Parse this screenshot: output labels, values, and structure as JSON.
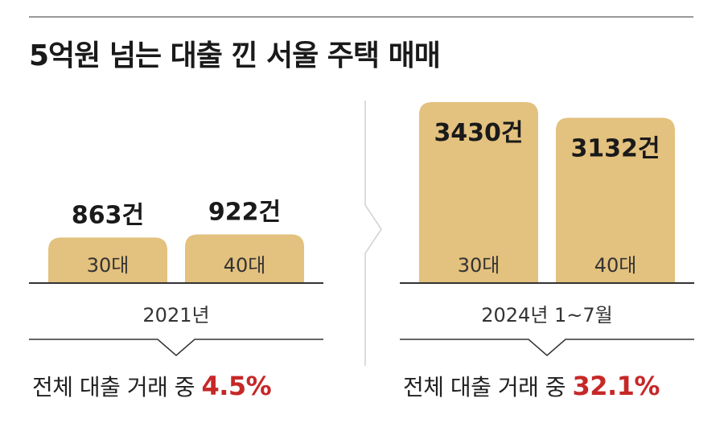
{
  "title": "5억원 넘는 대출 낀 서울 주택 매매",
  "colors": {
    "bar": "#e3c17e",
    "baseline": "#333333",
    "rule": "#9a9a9a",
    "highlight": "#c62828"
  },
  "chart_data": [
    {
      "type": "bar",
      "period": "2021년",
      "categories": [
        "30대",
        "40대"
      ],
      "values": [
        863,
        922
      ],
      "value_labels": [
        "863건",
        "922건"
      ],
      "ylim": [
        0,
        3430
      ],
      "share_text": "전체 대출 거래 중",
      "share_value": "4.5%"
    },
    {
      "type": "bar",
      "period": "2024년 1~7월",
      "categories": [
        "30대",
        "40대"
      ],
      "values": [
        3430,
        3132
      ],
      "value_labels": [
        "3430건",
        "3132건"
      ],
      "ylim": [
        0,
        3430
      ],
      "share_text": "전체 대출 거래 중",
      "share_value": "32.1%"
    }
  ]
}
